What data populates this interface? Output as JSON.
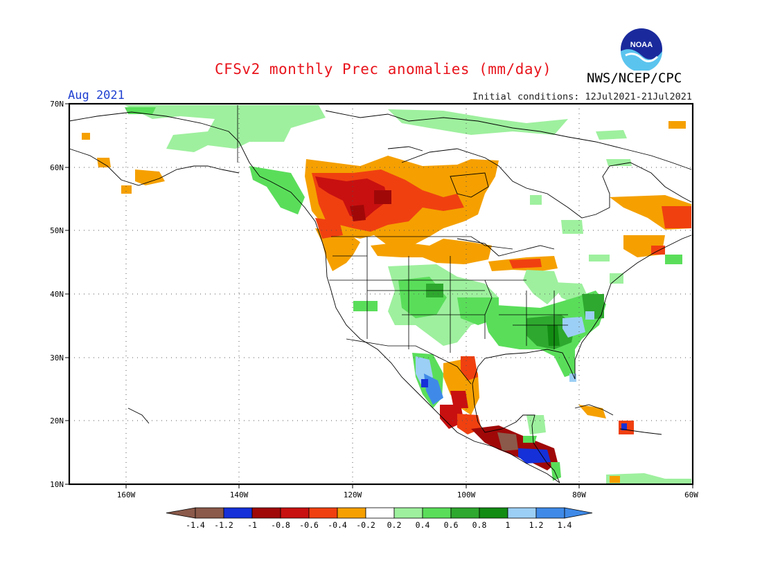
{
  "title": "CFSv2 monthly Prec anomalies (mm/day)",
  "agency": "NWS/NCEP/CPC",
  "logo_text": "NOAA",
  "month_label": "Aug 2021",
  "initial_conditions": "Initial conditions: 12Jul2021-21Jul2021",
  "lat_labels": [
    "70N",
    "60N",
    "50N",
    "40N",
    "30N",
    "20N",
    "10N"
  ],
  "lon_labels": [
    "160W",
    "140W",
    "120W",
    "100W",
    "80W",
    "60W"
  ],
  "colorbar": {
    "labels": [
      "-1.4",
      "-1.2",
      "-1",
      "-0.8",
      "-0.6",
      "-0.4",
      "-0.2",
      "0.2",
      "0.4",
      "0.6",
      "0.8",
      "1",
      "1.2",
      "1.4"
    ],
    "colors": [
      "#8b5a4a",
      "#1530d8",
      "#a00808",
      "#c81010",
      "#f04010",
      "#f5a000",
      "#ffffff",
      "#9ef09e",
      "#5ade5a",
      "#2ea82e",
      "#138c13",
      "#9ccff5",
      "#3f8ae8"
    ],
    "low_end_color": "#8b5a4a",
    "high_end_color": "#3f8ae8"
  },
  "anomaly_regions": [
    {
      "name": "western-canada",
      "value": -0.6
    },
    {
      "name": "western-canada-core",
      "value": -0.8
    },
    {
      "name": "pacific-northwest",
      "value": -0.4
    },
    {
      "name": "northern-plains",
      "value": -0.4
    },
    {
      "name": "great-lakes",
      "value": -0.4
    },
    {
      "name": "alaska-southwest",
      "value": -0.4
    },
    {
      "name": "labrador",
      "value": -0.6
    },
    {
      "name": "arctic-canada",
      "value": 0.2
    },
    {
      "name": "southern-rockies",
      "value": 0.4
    },
    {
      "name": "southeast-us",
      "value": 0.6
    },
    {
      "name": "carolinas",
      "value": 1.2
    },
    {
      "name": "sierra-madre-occidental",
      "value": 1.2
    },
    {
      "name": "mexico-gulf-coast",
      "value": -0.8
    },
    {
      "name": "central-america",
      "value": -1.0
    },
    {
      "name": "central-america-south",
      "value": -1.2
    },
    {
      "name": "guatemala",
      "value": -1.4
    },
    {
      "name": "caribbean",
      "value": -0.4
    }
  ]
}
